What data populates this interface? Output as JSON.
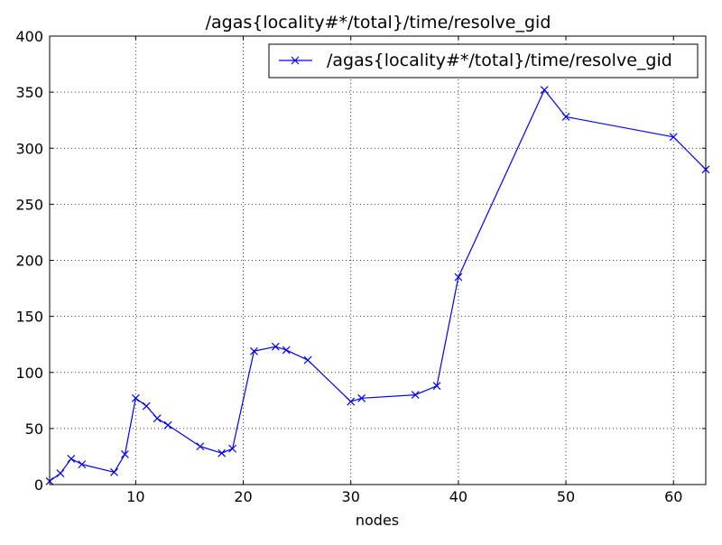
{
  "chart_data": {
    "type": "line",
    "title": "/agas{locality#*/total}/time/resolve_gid",
    "xlabel": "nodes",
    "ylabel": "",
    "xlim": [
      2,
      63
    ],
    "ylim": [
      0,
      400
    ],
    "xticks": [
      10,
      20,
      30,
      40,
      50,
      60
    ],
    "yticks": [
      0,
      50,
      100,
      150,
      200,
      250,
      300,
      350,
      400
    ],
    "grid": true,
    "legend_position": "top-right",
    "series": [
      {
        "name": "/agas{locality#*/total}/time/resolve_gid",
        "color": "#0000ff",
        "marker": "x",
        "x": [
          2,
          3,
          4,
          5,
          8,
          9,
          10,
          11,
          12,
          13,
          16,
          18,
          19,
          21,
          23,
          24,
          26,
          30,
          31,
          36,
          38,
          40,
          48,
          50,
          60,
          63
        ],
        "y": [
          3,
          10,
          23,
          18,
          11,
          27,
          77,
          70,
          59,
          53,
          34,
          28,
          32,
          119,
          123,
          120,
          111,
          74,
          77,
          80,
          88,
          185,
          352,
          328,
          310,
          281
        ]
      }
    ]
  }
}
